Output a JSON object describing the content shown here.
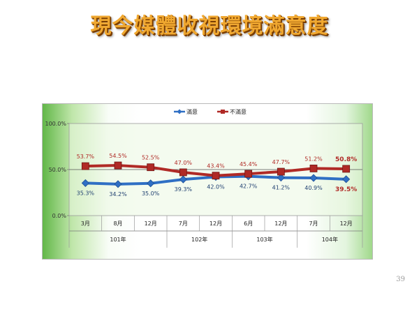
{
  "title": "現今媒體收視環境滿意度",
  "page_number": "39",
  "chart_data": {
    "type": "line",
    "title": "",
    "xlabel": "",
    "ylabel": "",
    "ylim": [
      0,
      100
    ],
    "y_ticks": [
      "0.0%",
      "50.0%",
      "100.0%"
    ],
    "y_tick_values": [
      0,
      50,
      100
    ],
    "legend_position": "top",
    "grid": false,
    "categories": [
      "3月",
      "8月",
      "12月",
      "7月",
      "12月",
      "6月",
      "12月",
      "7月",
      "12月"
    ],
    "groups": [
      {
        "label": "101年",
        "span": 3
      },
      {
        "label": "102年",
        "span": 2
      },
      {
        "label": "103年",
        "span": 2
      },
      {
        "label": "104年",
        "span": 2
      }
    ],
    "series": [
      {
        "name": "滿意",
        "color": "#2f6fc4",
        "values": [
          35.3,
          34.2,
          35.0,
          39.3,
          42.0,
          42.7,
          41.2,
          40.9,
          39.5
        ],
        "labels": [
          "35.3%",
          "34.2%",
          "35.0%",
          "39.3%",
          "42.0%",
          "42.7%",
          "41.2%",
          "40.9%",
          "39.5%"
        ]
      },
      {
        "name": "不滿意",
        "color": "#b02a26",
        "values": [
          53.7,
          54.5,
          52.5,
          47.0,
          43.4,
          45.4,
          47.7,
          51.2,
          50.8
        ],
        "labels": [
          "53.7%",
          "54.5%",
          "52.5%",
          "47.0%",
          "43.4%",
          "45.4%",
          "47.7%",
          "51.2%",
          "50.8%"
        ]
      }
    ]
  }
}
